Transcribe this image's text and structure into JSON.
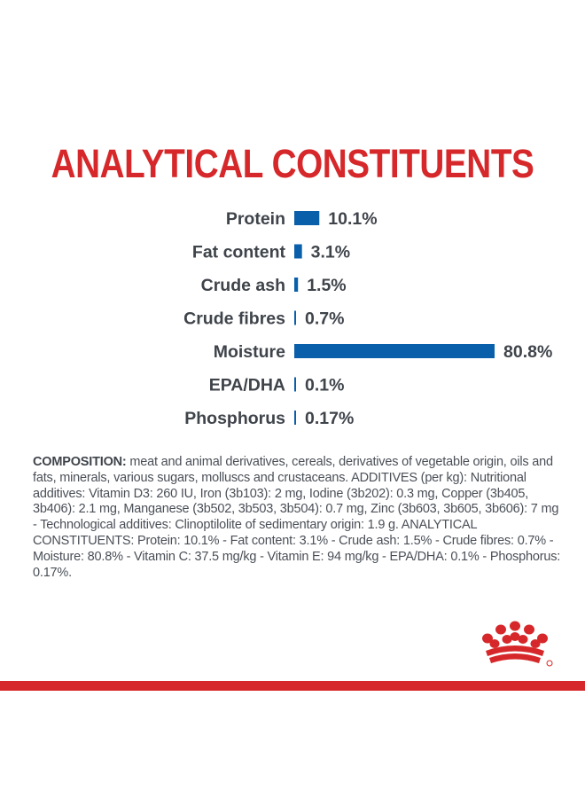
{
  "chart_data": {
    "type": "bar",
    "title": "ANALYTICAL CONSTITUENTS",
    "orientation": "horizontal",
    "categories": [
      "Protein",
      "Fat content",
      "Crude ash",
      "Crude fibres",
      "Moisture",
      "EPA/DHA",
      "Phosphorus"
    ],
    "values": [
      10.1,
      3.1,
      1.5,
      0.7,
      80.8,
      0.1,
      0.17
    ],
    "data_labels": [
      "10.1%",
      "3.1%",
      "1.5%",
      "0.7%",
      "80.8%",
      "0.1%",
      "0.17%"
    ],
    "unit": "%",
    "xlabel": "",
    "ylabel": "",
    "xlim": [
      0,
      80.8
    ],
    "grid": false,
    "legend": "none"
  },
  "colors": {
    "title": "#d6282a",
    "bar": "#0a5fab",
    "label": "#3f444b",
    "band": "#d6282a"
  },
  "composition": {
    "label": "COMPOSITION:",
    "text": " meat and animal derivatives, cereals, derivatives of vegetable origin, oils and fats, minerals, various sugars, molluscs and crustaceans. ADDITIVES (per kg): Nutritional additives: Vitamin D3: 260 IU, Iron (3b103): 2 mg, Iodine (3b202): 0.3 mg, Copper (3b405, 3b406): 2.1 mg, Manganese (3b502, 3b503, 3b504): 0.7 mg, Zinc (3b603, 3b605, 3b606): 7 mg - Technological additives: Clinoptilolite of sedimentary origin: 1.9 g. ANALYTICAL CONSTITUENTS: Protein: 10.1% - Fat content: 3.1% - Crude ash: 1.5% - Crude fibres: 0.7% - Moisture: 80.8% - Vitamin C: 37.5 mg/kg - Vitamin E: 94 mg/kg - EPA/DHA: 0.1% - Phosphorus: 0.17%."
  },
  "logo": {
    "icon": "royal-canin-crown-icon"
  }
}
